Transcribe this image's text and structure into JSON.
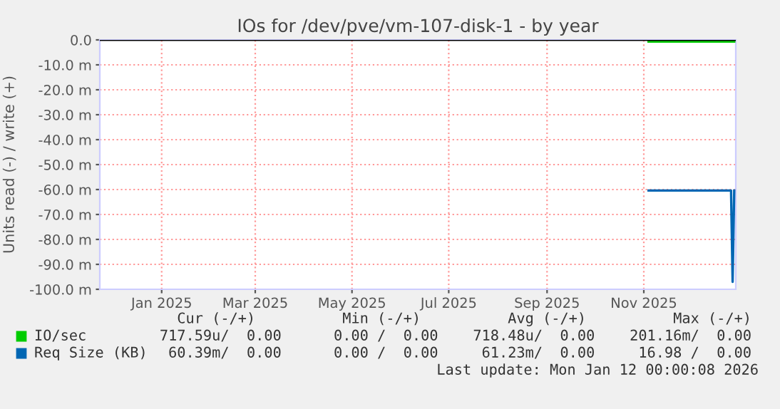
{
  "chart_data": {
    "type": "line",
    "title": "IOs for /dev/pve/vm-107-disk-1 - by year",
    "ylabel": "Units read (-) / write (+)",
    "series": [
      {
        "name": "IO/sec",
        "color": "#00cc00",
        "x": [
          "2025-11-04",
          "2025-12-28"
        ],
        "values": [
          -0.7,
          -0.7
        ]
      },
      {
        "name": "Req Size (KB)",
        "color": "#0066b3",
        "x": [
          "2025-11-04",
          "2025-12-26",
          "2025-12-27",
          "2025-12-28"
        ],
        "values": [
          -60.4,
          -60.4,
          -97,
          -60.4
        ]
      }
    ],
    "xlim": [
      "2024-11-23",
      "2025-12-29"
    ],
    "xticks": [
      {
        "value": "2025-01-01",
        "label": "Jan 2025"
      },
      {
        "value": "2025-03-01",
        "label": "Mar 2025"
      },
      {
        "value": "2025-05-01",
        "label": "May 2025"
      },
      {
        "value": "2025-07-01",
        "label": "Jul 2025"
      },
      {
        "value": "2025-09-01",
        "label": "Sep 2025"
      },
      {
        "value": "2025-11-01",
        "label": "Nov 2025"
      }
    ],
    "ylim": [
      -100,
      0
    ],
    "yticks": [
      {
        "value": 0,
        "label": "0.0"
      },
      {
        "value": -10,
        "label": "-10.0 m"
      },
      {
        "value": -20,
        "label": "-20.0 m"
      },
      {
        "value": -30,
        "label": "-30.0 m"
      },
      {
        "value": -40,
        "label": "-40.0 m"
      },
      {
        "value": -50,
        "label": "-50.0 m"
      },
      {
        "value": -60,
        "label": "-60.0 m"
      },
      {
        "value": -70,
        "label": "-70.0 m"
      },
      {
        "value": -80,
        "label": "-80.0 m"
      },
      {
        "value": -90,
        "label": "-90.0 m"
      },
      {
        "value": -100,
        "label": "-100.0 m"
      }
    ],
    "ref_lines": [
      {
        "axis": "y",
        "value": 0,
        "color": "#000000"
      }
    ],
    "grid": true,
    "legend": "bottom",
    "marker": "none",
    "line_style": "solid",
    "annotations": [
      "Cur (-/+)          Min (-/+)          Avg (-/+)          Max (-/+)",
      "717.59u/  0.00      0.00 /  0.00    718.48u/  0.00    201.16m/  0.00",
      "60.39m/  0.00      0.00 /  0.00     61.23m/  0.00     16.98 /  0.00",
      "Last update: Mon Jan 12 00:00:08 2026"
    ]
  }
}
